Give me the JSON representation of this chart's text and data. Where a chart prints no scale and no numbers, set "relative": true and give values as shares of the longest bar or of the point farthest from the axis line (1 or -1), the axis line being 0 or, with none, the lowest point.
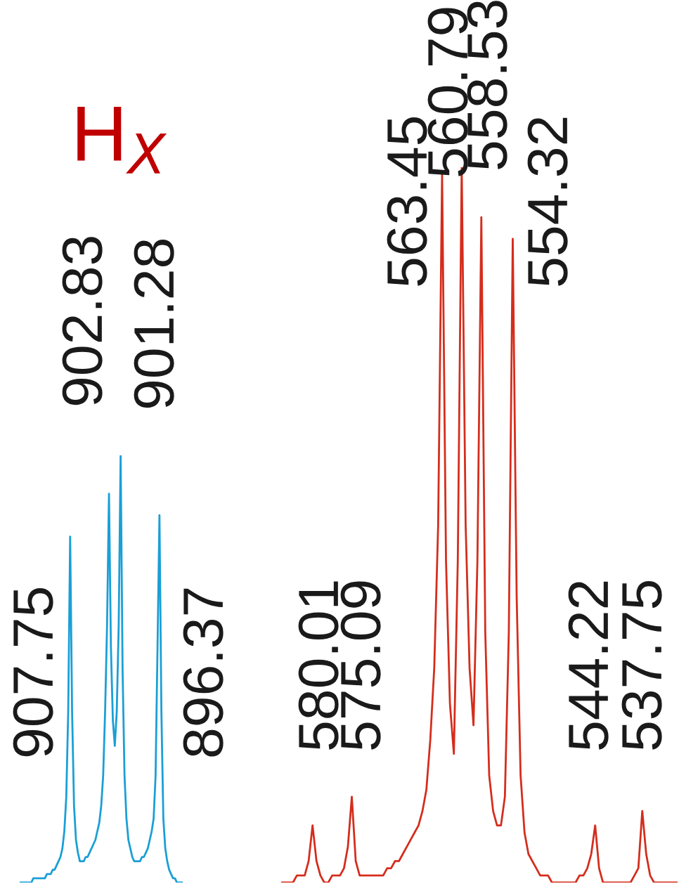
{
  "chart_data": [
    {
      "type": "line",
      "title": "H$_{X}$",
      "relative": true,
      "categories": [
        null,
        null,
        null,
        null,
        null,
        null,
        null,
        null,
        null,
        null,
        null,
        null,
        null,
        null,
        null,
        null,
        null,
        null,
        null,
        null,
        null,
        null,
        null,
        null,
        null,
        null,
        null,
        null,
        null,
        null,
        null,
        null,
        null,
        null,
        null,
        null,
        null,
        null,
        null,
        null,
        null,
        null,
        null,
        null,
        null,
        null,
        null,
        null,
        null,
        null,
        null,
        null,
        null,
        null,
        null,
        null,
        null,
        null,
        null,
        null,
        null,
        null,
        null,
        null,
        null,
        null,
        null,
        null,
        null,
        null,
        null,
        null,
        null,
        null,
        null,
        null,
        null,
        null,
        null,
        null,
        null,
        null,
        null,
        null,
        null
      ],
      "series": [
        {
          "color": "#1a9fd6",
          "values": [
            0,
            0,
            0,
            0,
            0,
            0,
            0,
            0.01,
            0.01,
            0.01,
            0.01,
            0.01,
            0.01,
            0.01,
            0.02,
            0.02,
            0.02,
            0.03,
            0.03,
            0.04,
            0.05,
            0.06,
            0.08,
            0.12,
            0.2,
            0.4,
            0.81,
            0.4,
            0.18,
            0.1,
            0.07,
            0.05,
            0.05,
            0.05,
            0.06,
            0.06,
            0.07,
            0.08,
            0.09,
            0.1,
            0.12,
            0.14,
            0.18,
            0.25,
            0.4,
            0.6,
            0.91,
            0.55,
            0.38,
            0.32,
            0.4,
            0.6,
            1,
            0.5,
            0.25,
            0.15,
            0.1,
            0.08,
            0.06,
            0.05,
            0.05,
            0.05,
            0.05,
            0.06,
            0.06,
            0.07,
            0.08,
            0.1,
            0.12,
            0.15,
            0.25,
            0.55,
            0.86,
            0.4,
            0.15,
            0.08,
            0.05,
            0.03,
            0.02,
            0.01,
            0.01,
            0,
            0,
            0,
            0
          ]
        }
      ],
      "annotations": [
        "907.75",
        "902.83",
        "901.28",
        "896.37"
      ]
    },
    {
      "type": "line",
      "relative": true,
      "categories": [
        null,
        null,
        null,
        null,
        null,
        null,
        null,
        null,
        null,
        null,
        null,
        null,
        null,
        null,
        null,
        null,
        null,
        null,
        null,
        null,
        null,
        null,
        null,
        null,
        null,
        null,
        null,
        null,
        null,
        null,
        null,
        null,
        null,
        null,
        null,
        null,
        null,
        null,
        null,
        null,
        null,
        null,
        null,
        null,
        null,
        null,
        null,
        null,
        null,
        null,
        null,
        null,
        null,
        null,
        null,
        null,
        null,
        null,
        null,
        null,
        null,
        null,
        null,
        null,
        null,
        null,
        null,
        null,
        null,
        null,
        null,
        null,
        null,
        null,
        null,
        null,
        null,
        null,
        null,
        null,
        null,
        null,
        null,
        null,
        null,
        null,
        null,
        null,
        null,
        null,
        null,
        null,
        null,
        null,
        null,
        null,
        null,
        null,
        null,
        null,
        null,
        null
      ],
      "series": [
        {
          "color": "#d42d1c",
          "values": [
            0,
            0,
            0,
            0,
            0.01,
            0.01,
            0.01,
            0.03,
            0.08,
            0.03,
            0.01,
            0,
            0,
            0.01,
            0.01,
            0.01,
            0.02,
            0.05,
            0.12,
            0.03,
            0.01,
            0.01,
            0.01,
            0.01,
            0.01,
            0.01,
            0.01,
            0.02,
            0.02,
            0.03,
            0.03,
            0.04,
            0.05,
            0.06,
            0.07,
            0.08,
            0.1,
            0.13,
            0.2,
            0.3,
            0.5,
            0.99,
            0.45,
            0.25,
            0.18,
            0.45,
            1,
            0.5,
            0.3,
            0.22,
            0.45,
            0.93,
            0.35,
            0.15,
            0.1,
            0.08,
            0.08,
            0.12,
            0.35,
            0.9,
            0.4,
            0.15,
            0.07,
            0.04,
            0.03,
            0.02,
            0.01,
            0.01,
            0.01,
            0,
            0,
            0,
            0,
            0,
            0,
            0,
            0.01,
            0.01,
            0.02,
            0.04,
            0.08,
            0.02,
            0,
            0,
            0,
            0,
            0,
            0,
            0,
            0,
            0.01,
            0.02,
            0.1,
            0.04,
            0.01,
            0,
            0,
            0,
            0,
            0,
            0,
            0
          ]
        }
      ],
      "annotations": [
        "580.01",
        "575.09",
        "563.45",
        "560.79",
        "558.53",
        "554.32",
        "544.22",
        "537.75"
      ]
    }
  ]
}
